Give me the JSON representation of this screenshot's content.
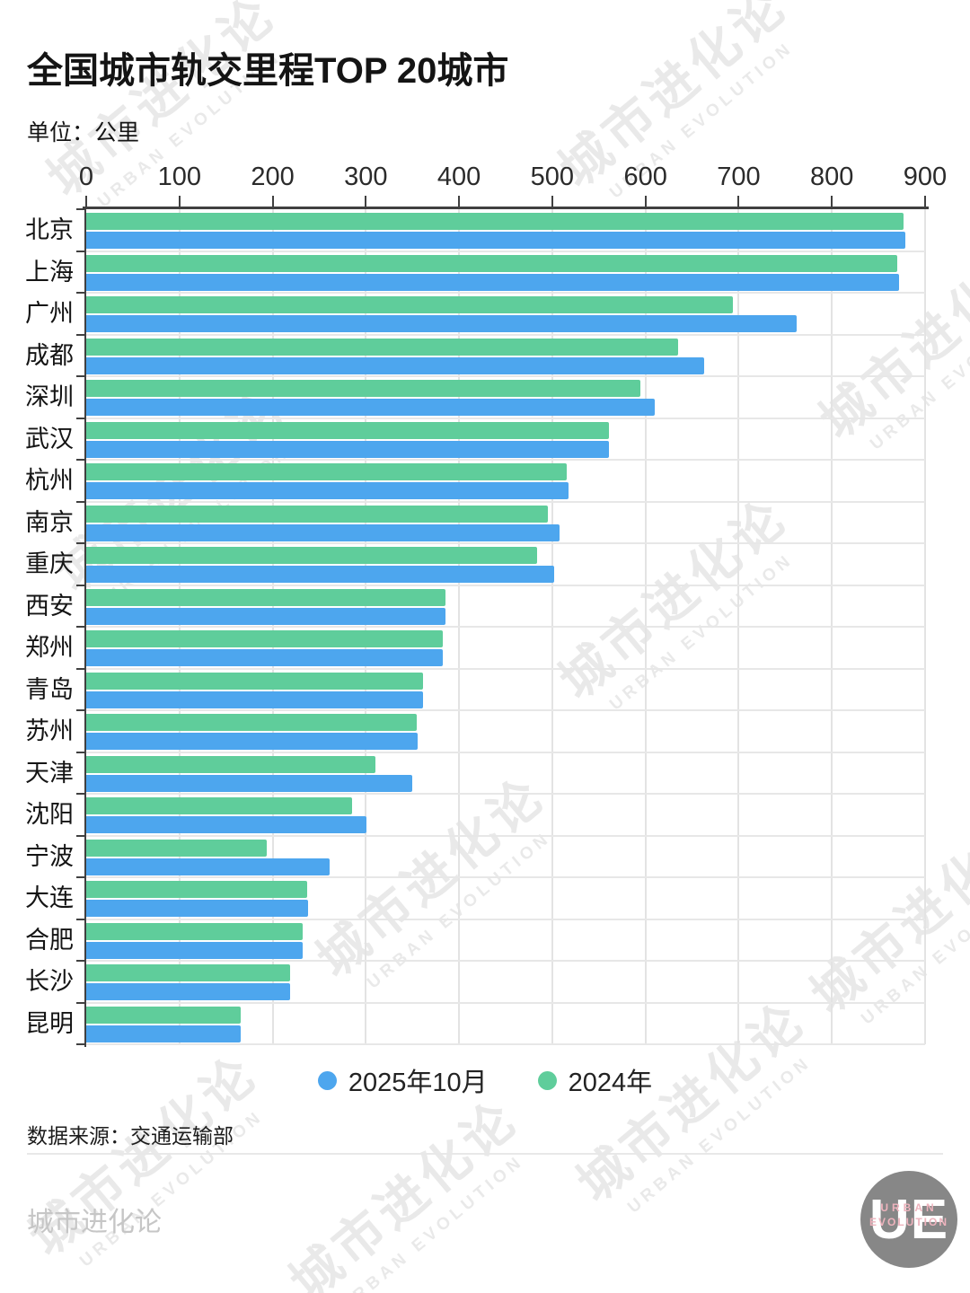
{
  "header": {
    "title": "全国城市轨交里程TOP 20城市",
    "unit_label": "单位：公里"
  },
  "chart_data": {
    "type": "bar",
    "orientation": "horizontal",
    "title": "全国城市轨交里程TOP 20城市",
    "xlabel": "",
    "ylabel": "",
    "unit": "公里",
    "xlim": [
      0,
      900
    ],
    "xticks": [
      0,
      100,
      200,
      300,
      400,
      500,
      600,
      700,
      800,
      900
    ],
    "grid": true,
    "legend_position": "bottom",
    "categories": [
      "北京",
      "上海",
      "广州",
      "成都",
      "深圳",
      "武汉",
      "杭州",
      "南京",
      "重庆",
      "西安",
      "郑州",
      "青岛",
      "苏州",
      "天津",
      "沈阳",
      "宁波",
      "大连",
      "合肥",
      "长沙",
      "昆明"
    ],
    "series": [
      {
        "name": "2025年10月",
        "color": "#4DA6EE",
        "values": [
          879,
          872,
          762,
          663,
          610,
          561,
          517,
          508,
          502,
          385,
          383,
          361,
          356,
          350,
          301,
          261,
          238,
          232,
          219,
          166
        ]
      },
      {
        "name": "2024年",
        "color": "#5FCD9B",
        "values": [
          877,
          870,
          694,
          635,
          595,
          561,
          516,
          495,
          484,
          385,
          383,
          361,
          355,
          310,
          285,
          194,
          237,
          232,
          219,
          166
        ]
      }
    ]
  },
  "legend": {
    "items": [
      {
        "label": "2025年10月",
        "color": "#4DA6EE"
      },
      {
        "label": "2024年",
        "color": "#5FCD9B"
      }
    ]
  },
  "footer": {
    "source": "数据来源：交通运输部",
    "brand": "城市进化论"
  },
  "watermark": {
    "cn": "城市进化论",
    "en": "URBAN EVOLUTION"
  },
  "logo": {
    "monogram": "UE",
    "line1": "URBAN",
    "line2": "EVOLUTION"
  }
}
